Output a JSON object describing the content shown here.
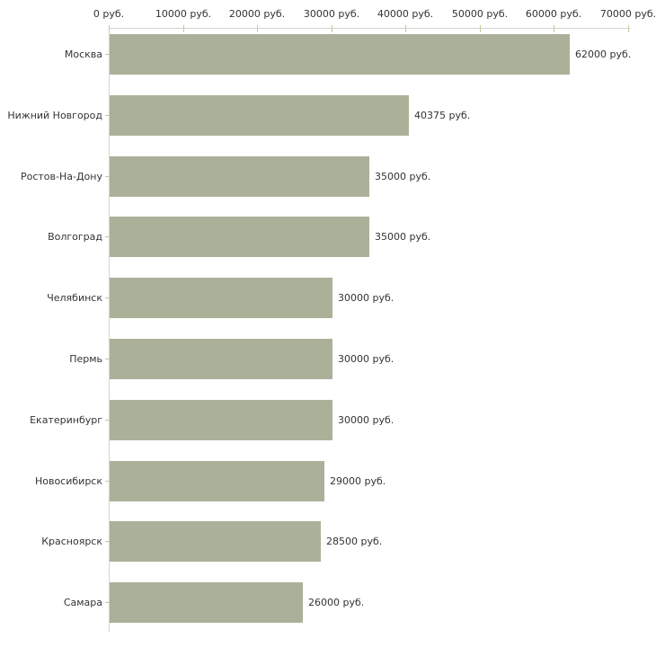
{
  "chart_data": {
    "type": "bar",
    "orientation": "horizontal",
    "title": "",
    "xlabel": "",
    "ylabel": "",
    "unit": "руб.",
    "xlim": [
      0,
      70000
    ],
    "grid": false,
    "legend": false,
    "categories": [
      "Москва",
      "Нижний Новгород",
      "Ростов-На-Дону",
      "Волгоград",
      "Челябинск",
      "Пермь",
      "Екатеринбург",
      "Новосибирск",
      "Красноярск",
      "Самара"
    ],
    "values": [
      62000,
      40375,
      35000,
      35000,
      30000,
      30000,
      30000,
      29000,
      28500,
      26000
    ],
    "value_labels": [
      "62000 руб.",
      "40375 руб.",
      "35000 руб.",
      "35000 руб.",
      "30000 руб.",
      "30000 руб.",
      "30000 руб.",
      "29000 руб.",
      "28500 руб.",
      "26000 руб."
    ],
    "x_tick_values": [
      0,
      10000,
      20000,
      30000,
      40000,
      50000,
      60000,
      70000
    ],
    "x_tick_labels": [
      "0 руб.",
      "10000 руб.",
      "20000 руб.",
      "30000 руб.",
      "40000 руб.",
      "50000 руб.",
      "60000 руб.",
      "70000 руб."
    ]
  },
  "colors": {
    "bar": "#abb199",
    "axis_line": "#d3d3ce",
    "tick": "#c8c8a0",
    "text": "#333333",
    "background": "#ffffff"
  }
}
